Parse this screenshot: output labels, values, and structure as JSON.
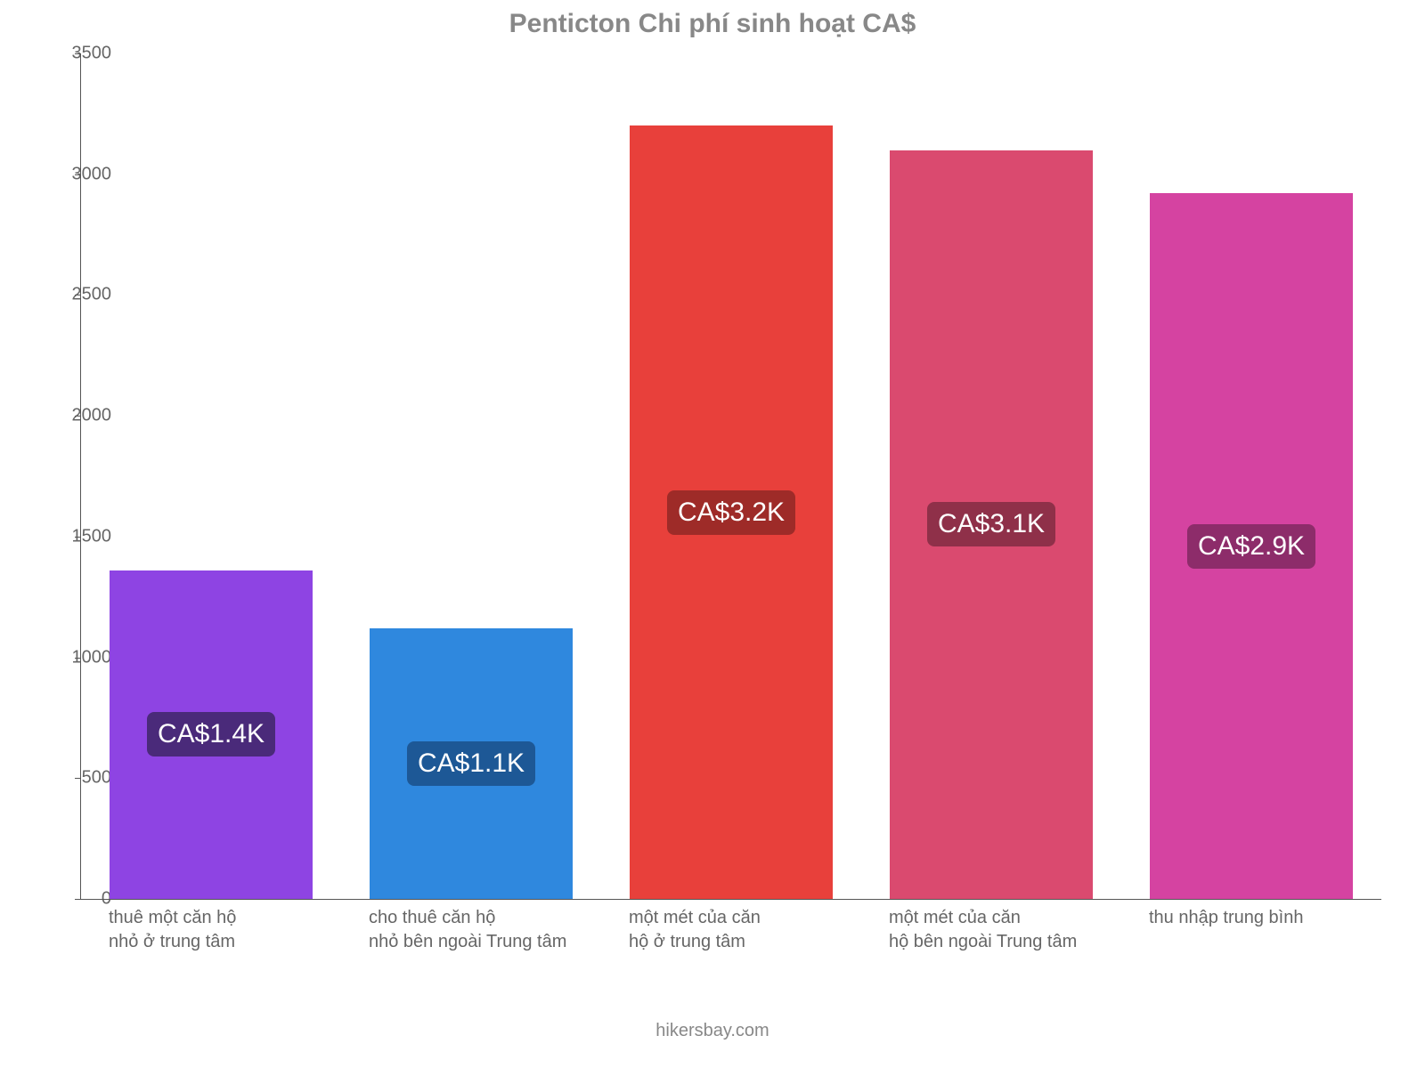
{
  "chart": {
    "type": "bar",
    "title": "Penticton Chi phí sinh hoạt CA$",
    "title_color": "#888888",
    "title_fontsize": 30,
    "background_color": "#ffffff",
    "axis_color": "#555555",
    "tick_label_color": "#666666",
    "tick_label_fontsize": 20,
    "xlabel_fontsize": 20,
    "bar_value_fontsize": 30,
    "ylim": [
      0,
      3500
    ],
    "ytick_step": 500,
    "yticks": [
      0,
      500,
      1000,
      1500,
      2000,
      2500,
      3000,
      3500
    ],
    "bar_width_ratio": 0.78,
    "categories": [
      "thuê một căn hộ\nnhỏ ở trung tâm",
      "cho thuê căn hộ\nnhỏ bên ngoài Trung tâm",
      "một mét của căn\nhộ ở trung tâm",
      "một mét của căn\nhộ bên ngoài Trung tâm",
      "thu nhập trung bình"
    ],
    "values": [
      1360,
      1120,
      3200,
      3100,
      2920
    ],
    "value_labels": [
      "CA$1.4K",
      "CA$1.1K",
      "CA$3.2K",
      "CA$3.1K",
      "CA$2.9K"
    ],
    "bar_colors": [
      "#8e44e3",
      "#2f88de",
      "#e8403b",
      "#da4a6f",
      "#d543a1"
    ],
    "label_bg_colors": [
      "#4a2a7a",
      "#1d5896",
      "#9e2b28",
      "#8f3049",
      "#8d2c6a"
    ],
    "label_text_color": "#ffffff",
    "footer": "hikersbay.com",
    "footer_color": "#888888",
    "footer_fontsize": 20
  }
}
